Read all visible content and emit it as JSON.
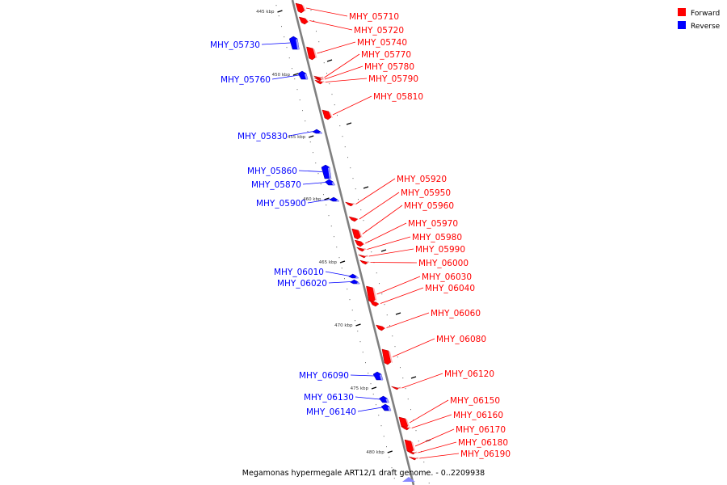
{
  "caption": "Megamonas hypermegale ART12/1 draft genome. - 0..2209938",
  "legend": [
    {
      "label": "Forward",
      "color": "#ff0000"
    },
    {
      "label": "Reverse",
      "color": "#0000ff"
    }
  ],
  "colors": {
    "forward": "#ff0000",
    "reverse": "#0000ff",
    "axis": "#808080"
  },
  "ticks": [
    "445 kbp",
    "450 kbp",
    "455 kbp",
    "460 kbp",
    "465 kbp",
    "470 kbp",
    "475 kbp",
    "480 kbp"
  ],
  "genes": [
    {
      "id": "MHY_05710",
      "strand": "forward"
    },
    {
      "id": "MHY_05720",
      "strand": "forward"
    },
    {
      "id": "MHY_05730",
      "strand": "reverse"
    },
    {
      "id": "MHY_05740",
      "strand": "forward"
    },
    {
      "id": "MHY_05760",
      "strand": "reverse"
    },
    {
      "id": "MHY_05770",
      "strand": "forward"
    },
    {
      "id": "MHY_05780",
      "strand": "forward"
    },
    {
      "id": "MHY_05790",
      "strand": "forward"
    },
    {
      "id": "MHY_05810",
      "strand": "forward"
    },
    {
      "id": "MHY_05830",
      "strand": "reverse"
    },
    {
      "id": "MHY_05860",
      "strand": "reverse"
    },
    {
      "id": "MHY_05870",
      "strand": "reverse"
    },
    {
      "id": "MHY_05900",
      "strand": "reverse"
    },
    {
      "id": "MHY_05920",
      "strand": "forward"
    },
    {
      "id": "MHY_05950",
      "strand": "forward"
    },
    {
      "id": "MHY_05960",
      "strand": "forward"
    },
    {
      "id": "MHY_05970",
      "strand": "forward"
    },
    {
      "id": "MHY_05980",
      "strand": "forward"
    },
    {
      "id": "MHY_05990",
      "strand": "forward"
    },
    {
      "id": "MHY_06000",
      "strand": "forward"
    },
    {
      "id": "MHY_06010",
      "strand": "reverse"
    },
    {
      "id": "MHY_06020",
      "strand": "reverse"
    },
    {
      "id": "MHY_06030",
      "strand": "forward"
    },
    {
      "id": "MHY_06040",
      "strand": "forward"
    },
    {
      "id": "MHY_06060",
      "strand": "forward"
    },
    {
      "id": "MHY_06080",
      "strand": "forward"
    },
    {
      "id": "MHY_06090",
      "strand": "reverse"
    },
    {
      "id": "MHY_06120",
      "strand": "forward"
    },
    {
      "id": "MHY_06130",
      "strand": "reverse"
    },
    {
      "id": "MHY_06140",
      "strand": "reverse"
    },
    {
      "id": "MHY_06150",
      "strand": "forward"
    },
    {
      "id": "MHY_06160",
      "strand": "forward"
    },
    {
      "id": "MHY_06170",
      "strand": "forward"
    },
    {
      "id": "MHY_06180",
      "strand": "forward"
    },
    {
      "id": "MHY_06190",
      "strand": "forward"
    }
  ]
}
